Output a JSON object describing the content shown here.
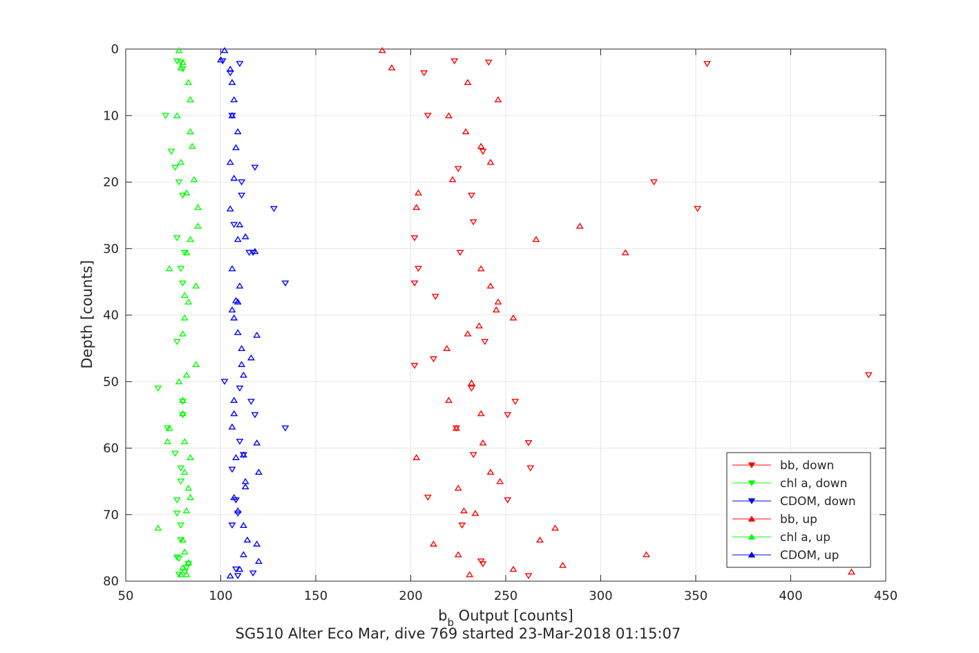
{
  "chart_data": {
    "type": "scatter",
    "xlabel_main": "b",
    "xlabel_sub": "b",
    "xlabel_rest": " Output [counts]",
    "ylabel": "Depth [counts]",
    "footer": "SG510 Alter Eco Mar, dive 769 started 23-Mar-2018 01:15:07",
    "xlim": [
      50,
      450
    ],
    "ylim": [
      0,
      80
    ],
    "y_reversed": true,
    "grid": true,
    "legend_position": "lower-right",
    "xticks": [
      50,
      100,
      150,
      200,
      250,
      300,
      350,
      400,
      450
    ],
    "yticks": [
      0,
      10,
      20,
      30,
      40,
      50,
      60,
      70,
      80
    ],
    "series": [
      {
        "name": "bb, down",
        "color": "#ff0000",
        "marker": "triangle-down",
        "x": [
          223,
          241,
          356,
          207,
          209,
          238,
          225,
          328,
          232,
          351,
          233,
          202,
          226,
          204,
          202,
          213,
          239,
          202,
          212,
          441,
          232,
          255,
          251,
          224,
          262,
          233,
          263,
          209,
          251,
          227,
          237,
          238,
          262
        ],
        "y": [
          1.8,
          2,
          2.2,
          3.6,
          10,
          15.4,
          18,
          20,
          22,
          24,
          26,
          28.4,
          30.6,
          33,
          35.2,
          37.2,
          44,
          47.6,
          46.6,
          49,
          51,
          53,
          55,
          57,
          59.2,
          61,
          63,
          67.4,
          67.8,
          71.6,
          77,
          77.4,
          79.2
        ]
      },
      {
        "name": "chl a, down",
        "color": "#00ff00",
        "marker": "triangle-down",
        "x": [
          77,
          79,
          80,
          71,
          74,
          76,
          78,
          80,
          77,
          81,
          79,
          80,
          77,
          67,
          80,
          80,
          72,
          76,
          79,
          79,
          77,
          77,
          79,
          79,
          83,
          78,
          77,
          78,
          81,
          82
        ],
        "y": [
          1.8,
          2,
          3,
          10,
          15.4,
          17.8,
          20,
          22,
          28.4,
          30.6,
          33,
          35.2,
          44,
          51,
          53,
          55,
          57,
          60.8,
          63,
          65,
          67.8,
          69.8,
          71.6,
          73.8,
          77.4,
          76.6,
          76.4,
          79,
          78.6,
          78
        ]
      },
      {
        "name": "CDOM, down",
        "color": "#0000ff",
        "marker": "triangle-down",
        "x": [
          101,
          110,
          105,
          106,
          118,
          111,
          111,
          128,
          107,
          115,
          134,
          117,
          102,
          110,
          116,
          118,
          134,
          110,
          112,
          106,
          108,
          109,
          106,
          109,
          117,
          108
        ],
        "y": [
          1.8,
          2.2,
          3.6,
          10,
          17.8,
          20,
          22,
          24,
          26.4,
          30.6,
          35.2,
          30.6,
          50,
          51,
          53,
          55,
          57,
          59,
          61,
          63.2,
          67.8,
          69.8,
          71.6,
          79.2,
          78.8,
          78.2
        ]
      },
      {
        "name": "bb, up",
        "color": "#ff0000",
        "marker": "triangle-up",
        "x": [
          185,
          190,
          230,
          246,
          220,
          229,
          237,
          242,
          222,
          204,
          203,
          289,
          266,
          313,
          237,
          242,
          246,
          245,
          254,
          236,
          230,
          219,
          232,
          220,
          237,
          224,
          238,
          203,
          242,
          247,
          225,
          234,
          228,
          276,
          268,
          212,
          225,
          280,
          254,
          231,
          324,
          432
        ],
        "y": [
          0.2,
          2.8,
          5,
          7.6,
          10,
          12.4,
          14.6,
          17,
          19.6,
          21.6,
          23.8,
          26.6,
          28.6,
          30.6,
          33,
          35.6,
          38,
          39.2,
          40.4,
          41.6,
          42.8,
          45,
          50.2,
          52.8,
          54.8,
          57,
          59.2,
          61.4,
          63.6,
          65,
          66,
          69.8,
          69.4,
          72,
          73.8,
          74.4,
          76,
          77.6,
          78.2,
          79,
          76,
          78.6
        ]
      },
      {
        "name": "chl a, up",
        "color": "#00ff00",
        "marker": "triangle-up",
        "x": [
          78,
          79,
          80,
          83,
          84,
          77,
          84,
          85,
          79,
          86,
          82,
          88,
          88,
          84,
          82,
          73,
          87,
          81,
          83,
          81,
          80,
          87,
          82,
          78,
          80,
          80,
          73,
          72,
          81,
          84,
          81,
          83,
          84,
          82,
          67,
          80,
          81,
          83,
          79,
          82,
          80
        ],
        "y": [
          0.2,
          2.8,
          2,
          5,
          7.6,
          10,
          12.4,
          14.6,
          17,
          19.6,
          21.6,
          23.8,
          26.6,
          28.6,
          30.6,
          33,
          35.6,
          37,
          38,
          40.4,
          42.8,
          47.4,
          49,
          50,
          52.8,
          54.8,
          57,
          59,
          59,
          61.4,
          63.6,
          66,
          67.4,
          69.4,
          72,
          73.8,
          75.6,
          77.2,
          79,
          79,
          78
        ]
      },
      {
        "name": "CDOM, up",
        "color": "#0000ff",
        "marker": "triangle-up",
        "x": [
          102,
          100,
          105,
          106,
          107,
          106,
          109,
          108,
          105,
          107,
          110,
          105,
          106,
          113,
          109,
          118,
          110,
          106,
          107,
          109,
          108,
          109,
          119,
          111,
          111,
          116,
          112,
          107,
          107,
          106,
          112,
          119,
          108,
          120,
          113,
          113,
          107,
          109,
          112,
          114,
          119,
          112,
          120,
          105,
          110
        ],
        "y": [
          0.2,
          1.6,
          3,
          5,
          7.6,
          10,
          12.4,
          14.8,
          17,
          19.4,
          26.4,
          24,
          33,
          28.2,
          28.6,
          30.4,
          35.6,
          39.2,
          40.4,
          38,
          37.8,
          42.6,
          43,
          45,
          47.4,
          46.4,
          49,
          52.8,
          54.8,
          56.8,
          61,
          59.2,
          61.4,
          63.6,
          65,
          65.8,
          67.4,
          69.4,
          71.6,
          73.8,
          74.4,
          76,
          77,
          79.2,
          78.2
        ]
      }
    ]
  }
}
